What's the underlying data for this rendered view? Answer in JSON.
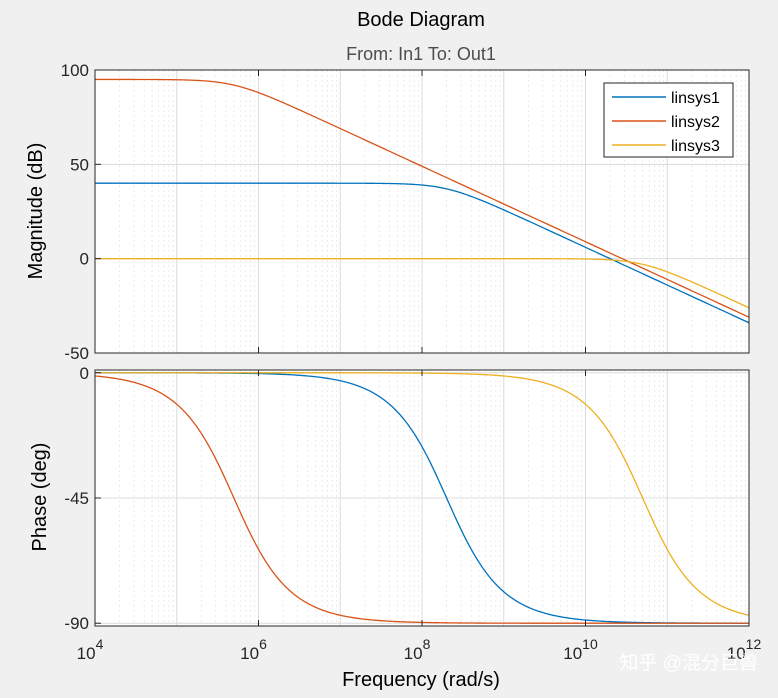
{
  "chart_data": {
    "type": "line",
    "title": "Bode Diagram",
    "subtitle": "From: In1  To: Out1",
    "xlabel": "Frequency  (rad/s)",
    "xscale": "log",
    "xlim": [
      10000,
      1000000000000
    ],
    "x_ticks": [
      {
        "base": "10",
        "exp": "4"
      },
      {
        "base": "10",
        "exp": "6"
      },
      {
        "base": "10",
        "exp": "8"
      },
      {
        "base": "10",
        "exp": "10"
      },
      {
        "base": "10",
        "exp": "12"
      }
    ],
    "grid": true,
    "legend_position": "top-right",
    "colors": {
      "background": "#f0f0f0",
      "axes_bg": "#ffffff",
      "grid": "#dcdcdc",
      "minor_grid": "#e6e6e6",
      "axis": "#262626",
      "watermark": "#ffffff"
    },
    "series": [
      {
        "name": "linsys1",
        "color": "#0072bd",
        "dc_gain_db": 40,
        "corner_rad_s": 200000000
      },
      {
        "name": "linsys2",
        "color": "#d95319",
        "dc_gain_db": 95,
        "corner_rad_s": 500000
      },
      {
        "name": "linsys3",
        "color": "#edb120",
        "dc_gain_db": 0,
        "corner_rad_s": 50000000000
      }
    ],
    "panels": [
      {
        "name": "magnitude",
        "ylabel": "Magnitude (dB)",
        "ylim": [
          -50,
          100
        ],
        "y_ticks": [
          100,
          50,
          0,
          -50
        ],
        "y_tick_labels": [
          "100",
          "50",
          "0",
          "-50"
        ]
      },
      {
        "name": "phase",
        "ylabel": "Phase (deg)",
        "ylim": [
          -91,
          1
        ],
        "y_ticks": [
          0,
          -45,
          -90
        ],
        "y_tick_labels": [
          "0",
          "-45",
          "-90"
        ]
      }
    ]
  },
  "watermark": {
    "text": "知乎 @混分巨兽"
  }
}
